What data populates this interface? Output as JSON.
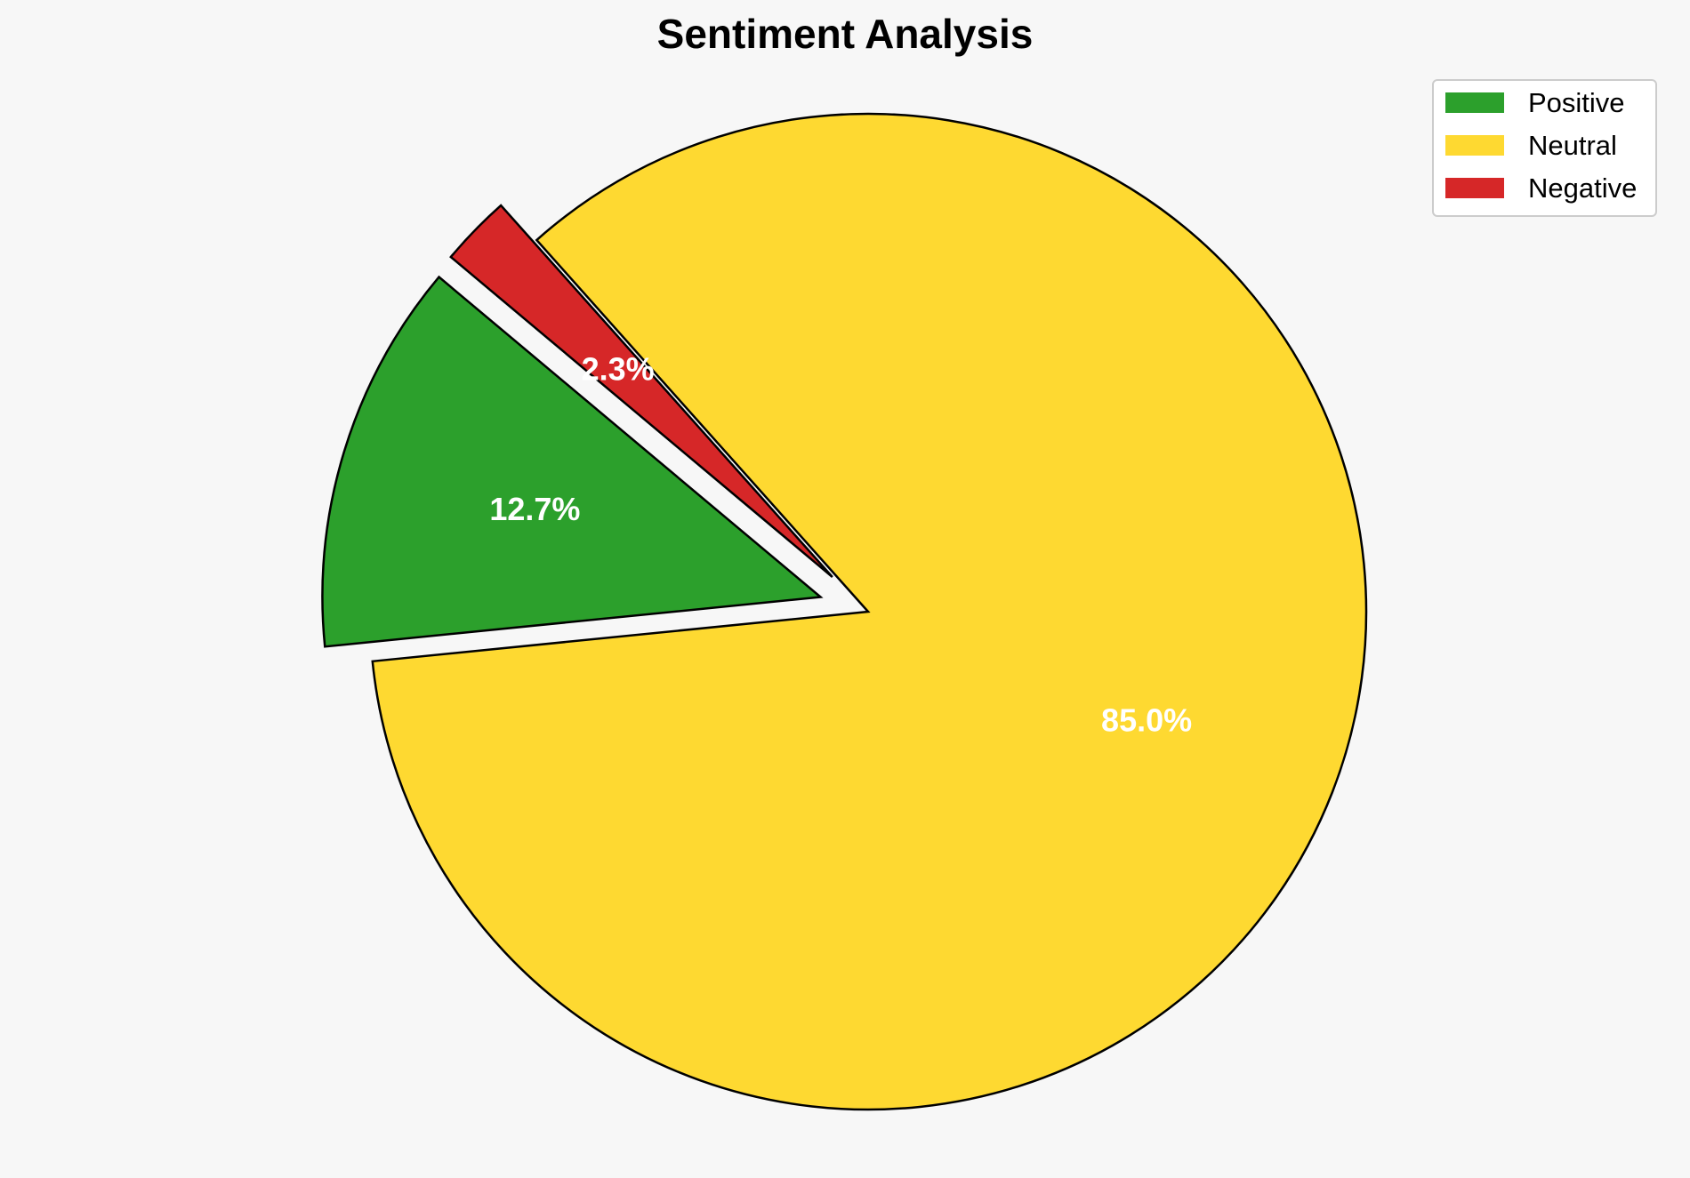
{
  "chart_data": {
    "type": "pie",
    "title": "Sentiment Analysis",
    "slices": [
      {
        "label": "Positive",
        "value": 12.7,
        "display": "12.7%",
        "color": "#2ca02c",
        "exploded": true
      },
      {
        "label": "Neutral",
        "value": 85.0,
        "display": "85.0%",
        "color": "#fed931",
        "exploded": false
      },
      {
        "label": "Negative",
        "value": 2.3,
        "display": "2.3%",
        "color": "#d62728",
        "exploded": true
      }
    ],
    "start_angle_deg": 140,
    "direction": "counterclockwise",
    "legend": {
      "position": "top-right",
      "entries": [
        "Positive",
        "Neutral",
        "Negative"
      ]
    }
  },
  "colors": {
    "background": "#f7f7f7",
    "slice_edge": "#000000",
    "label_text": "#ffffff"
  }
}
